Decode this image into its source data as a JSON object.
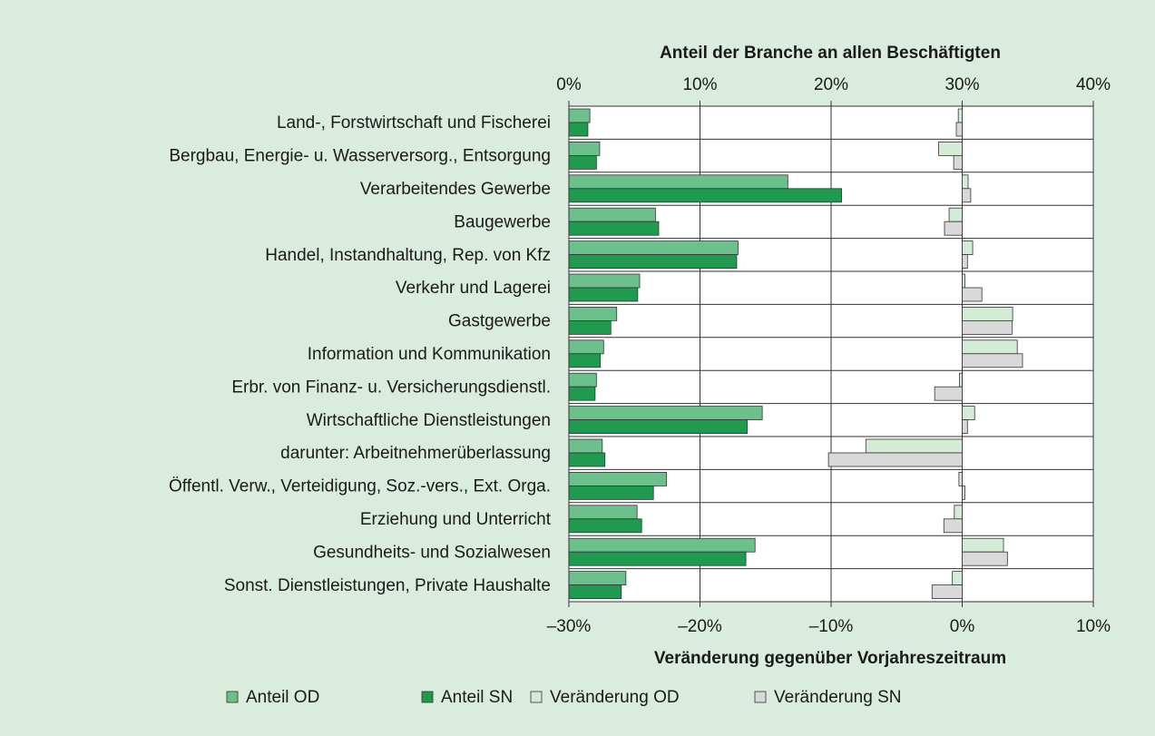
{
  "chart_data": {
    "type": "bar",
    "orientation": "horizontal",
    "xlabel": "Anteil der Branche an allen Beschäftigten",
    "x2label": "Veränderung gegenüber Vorjahreszeitraum",
    "categories": [
      "Land-, Forstwirtschaft und Fischerei",
      "Bergbau, Energie- u. Wasserversorg., Entsorgung",
      "Verarbeitendes Gewerbe",
      "Baugewerbe",
      "Handel, Instandhaltung, Rep. von Kfz",
      "Verkehr und Lagerei",
      "Gastgewerbe",
      "Information und Kommunikation",
      "Erbr. von Finanz- u. Versicherungsdienstl.",
      "Wirtschaftliche Dienstleistungen",
      "darunter: Arbeitnehmerüberlassung",
      "Öffentl. Verw., Verteidigung, Soz.-vers., Ext. Orga.",
      "Erziehung und Unterricht",
      "Gesundheits- und Sozialwesen",
      "Sonst. Dienstleistungen, Private Haushalte"
    ],
    "series": [
      {
        "name": "Anteil OD",
        "color": "#6cc08c",
        "axis": "x",
        "values": [
          1.6,
          2.35,
          16.7,
          6.6,
          12.9,
          5.4,
          3.65,
          2.65,
          2.1,
          14.75,
          2.55,
          7.45,
          5.2,
          14.2,
          4.35
        ]
      },
      {
        "name": "Anteil SN",
        "color": "#1f9a4e",
        "axis": "x",
        "values": [
          1.45,
          2.1,
          20.8,
          6.85,
          12.8,
          5.25,
          3.2,
          2.4,
          2.0,
          13.6,
          2.75,
          6.45,
          5.55,
          13.5,
          4.0
        ]
      },
      {
        "name": "Veränderung OD",
        "color": "#d2ecd5",
        "axis": "x2",
        "values": [
          -0.3,
          -1.8,
          0.45,
          -1.0,
          0.8,
          0.2,
          3.85,
          4.2,
          -0.2,
          0.95,
          -7.35,
          -0.25,
          -0.6,
          3.15,
          -0.75
        ]
      },
      {
        "name": "Veränderung SN",
        "color": "#d9d9d9",
        "axis": "x2",
        "values": [
          -0.45,
          -0.65,
          0.65,
          -1.35,
          0.4,
          1.5,
          3.8,
          4.6,
          -2.1,
          0.4,
          -10.2,
          0.2,
          -1.4,
          3.45,
          -2.3
        ]
      }
    ],
    "xlim": [
      0,
      40
    ],
    "xticks": [
      {
        "value": 0,
        "label": "0%"
      },
      {
        "value": 10,
        "label": "10%"
      },
      {
        "value": 20,
        "label": "20%"
      },
      {
        "value": 30,
        "label": "30%"
      },
      {
        "value": 40,
        "label": "40%"
      }
    ],
    "x2lim": [
      -30,
      10
    ],
    "x2ticks": [
      {
        "value": -30,
        "label": "–30%"
      },
      {
        "value": -20,
        "label": "–20%"
      },
      {
        "value": -10,
        "label": "–10%"
      },
      {
        "value": 0,
        "label": "0%"
      },
      {
        "value": 10,
        "label": "10%"
      }
    ],
    "grid": true
  }
}
